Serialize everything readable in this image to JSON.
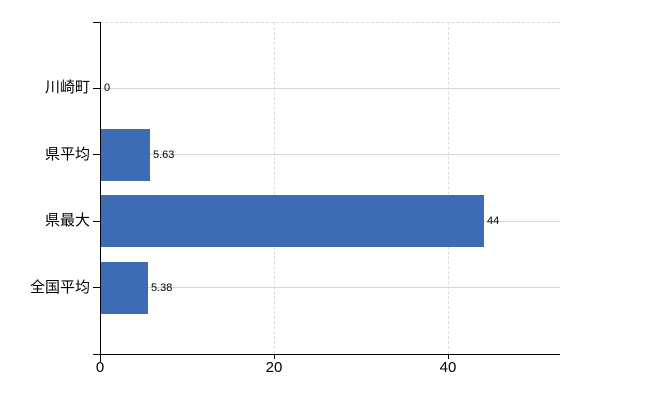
{
  "chart_data": {
    "type": "bar",
    "orientation": "horizontal",
    "title": "",
    "xlabel": "",
    "ylabel": "",
    "categories": [
      "川崎町",
      "県平均",
      "県最大",
      "全国平均"
    ],
    "values": [
      0,
      5.63,
      44,
      5.38
    ],
    "value_labels": [
      "0",
      "5.63",
      "44",
      "5.38"
    ],
    "x_ticks": [
      0,
      20,
      40
    ],
    "x_tick_labels": [
      "0",
      "20",
      "40"
    ],
    "xlim": [
      0,
      52.9
    ],
    "legend": "none",
    "grid": {
      "horizontal": "solid, one line per category row",
      "vertical": "dashed at x=20 and x=40",
      "plot_top_border": "dashed"
    },
    "colors": {
      "bar": "#3d6cb4",
      "axis": "#000000",
      "h_grid": "#d3dad3",
      "v_grid": "#dcdcdc",
      "text": "#000000",
      "background": "#ffffff"
    }
  }
}
